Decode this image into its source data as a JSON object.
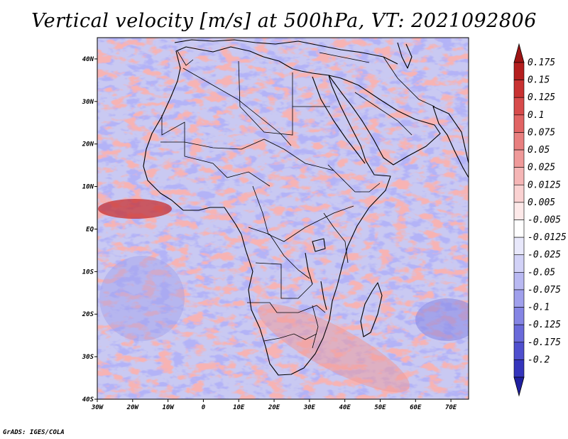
{
  "title": "Vertical velocity [m/s] at 500hPa, VT: 2021092806",
  "credit": "GrADS: IGES/COLA",
  "map": {
    "lon_range": [
      -30,
      75
    ],
    "lat_range": [
      -40,
      45
    ],
    "x_ticks": [
      {
        "value": -30,
        "label": "30W"
      },
      {
        "value": -20,
        "label": "20W"
      },
      {
        "value": -10,
        "label": "10W"
      },
      {
        "value": 0,
        "label": "0"
      },
      {
        "value": 10,
        "label": "10E"
      },
      {
        "value": 20,
        "label": "20E"
      },
      {
        "value": 30,
        "label": "30E"
      },
      {
        "value": 40,
        "label": "40E"
      },
      {
        "value": 50,
        "label": "50E"
      },
      {
        "value": 60,
        "label": "60E"
      },
      {
        "value": 70,
        "label": "70E"
      }
    ],
    "y_ticks": [
      {
        "value": 40,
        "label": "40N"
      },
      {
        "value": 30,
        "label": "30N"
      },
      {
        "value": 20,
        "label": "20N"
      },
      {
        "value": 10,
        "label": "10N"
      },
      {
        "value": 0,
        "label": "EQ"
      },
      {
        "value": -10,
        "label": "10S"
      },
      {
        "value": -20,
        "label": "20S"
      },
      {
        "value": -30,
        "label": "30S"
      },
      {
        "value": -40,
        "label": "40S"
      }
    ]
  },
  "colorbar": {
    "levels": [
      {
        "label": "0.175",
        "color": "#b41e1e"
      },
      {
        "label": "0.15",
        "color": "#c83232"
      },
      {
        "label": "0.125",
        "color": "#d74b4b"
      },
      {
        "label": "0.1",
        "color": "#e16464"
      },
      {
        "label": "0.075",
        "color": "#e87f7f"
      },
      {
        "label": "0.05",
        "color": "#ef9a9a"
      },
      {
        "label": "0.025",
        "color": "#f5b6b6"
      },
      {
        "label": "0.0125",
        "color": "#fad2d2"
      },
      {
        "label": "0.005",
        "color": "#fde9e9"
      },
      {
        "label": "-0.005",
        "color": "#ffffff"
      },
      {
        "label": "-0.0125",
        "color": "#e8e8fb"
      },
      {
        "label": "-0.025",
        "color": "#d2d2f7"
      },
      {
        "label": "-0.05",
        "color": "#b9b9f2"
      },
      {
        "label": "-0.075",
        "color": "#a0a0ec"
      },
      {
        "label": "-0.1",
        "color": "#8585e4"
      },
      {
        "label": "-0.125",
        "color": "#6a6ada"
      },
      {
        "label": "-0.175",
        "color": "#4f4fce"
      },
      {
        "label": "-0.2",
        "color": "#3535bc"
      }
    ],
    "top_arrow_color": "#9e1414",
    "bottom_arrow_color": "#2020a0"
  }
}
